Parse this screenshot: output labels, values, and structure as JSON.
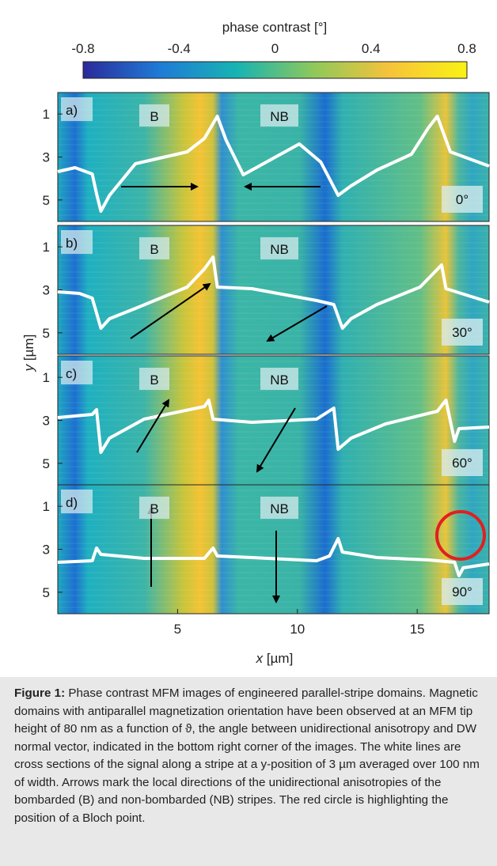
{
  "colorbar": {
    "label": "phase contrast [°]",
    "ticks": [
      "-0.8",
      "-0.4",
      "0",
      "0.4",
      "0.8"
    ],
    "range": [
      -0.8,
      0.8
    ],
    "colors": [
      "#2b2a9a",
      "#1f7bd6",
      "#17b3b3",
      "#8ec85a",
      "#f7c33a",
      "#f9f214"
    ]
  },
  "axes": {
    "xlabel_var": "x",
    "xlabel_unit": " [µm]",
    "ylabel_var": "y",
    "ylabel_unit": " [µm]",
    "xticks": [
      "5",
      "10",
      "15"
    ],
    "xtick_values": [
      5,
      10,
      15
    ],
    "xrange": [
      0,
      18
    ],
    "yticks": [
      "1",
      "3",
      "5"
    ],
    "ytick_values": [
      1,
      3,
      5
    ],
    "yrange": [
      0,
      6
    ]
  },
  "panels": [
    {
      "tag": "a)",
      "angle": "0°",
      "b_label": "B",
      "nb_label": "NB"
    },
    {
      "tag": "b)",
      "angle": "30°",
      "b_label": "B",
      "nb_label": "NB"
    },
    {
      "tag": "c)",
      "angle": "60°",
      "b_label": "B",
      "nb_label": "NB"
    },
    {
      "tag": "d)",
      "angle": "90°",
      "b_label": "B",
      "nb_label": "NB"
    }
  ],
  "highlight_color": "#e02020",
  "caption": {
    "label": "Figure 1:",
    "text": " Phase contrast MFM images of engineered parallel-stripe domains. Magnetic domains with antiparallel magnetization orientation have been observed at an MFM tip height of 80 nm as a function of ϑ, the angle between unidirectional anisotropy and DW normal vector, indicated in the bottom right corner of the images. The white lines are cross sections of the signal along a stripe at a y-position of 3 µm averaged over 100 nm of width. Arrows mark the local directions of the unidirectional anisotropies of the bombarded (B) and non-bombarded (NB) stripes. The red circle is highlighting the position of a Bloch point."
  }
}
